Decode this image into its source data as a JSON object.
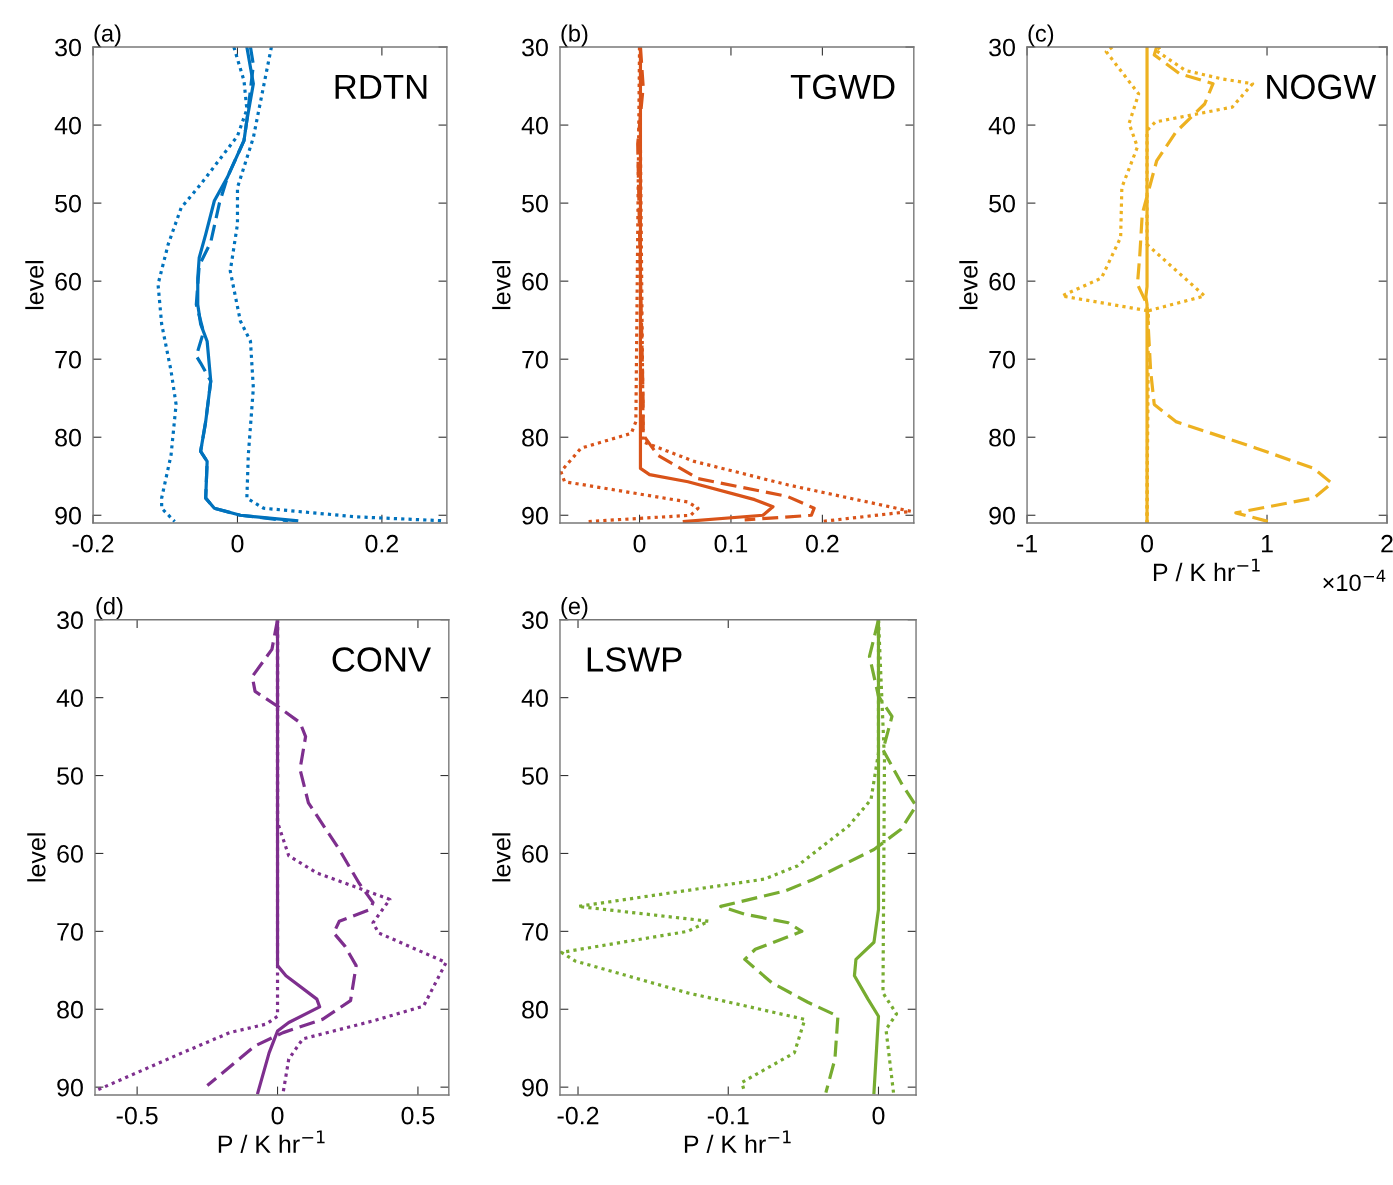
{
  "chart_data": [
    {
      "type": "line",
      "title": "(a)",
      "ylabel": "level",
      "annotations": [
        "RDTN"
      ],
      "xlim": [
        -0.2,
        0.29
      ],
      "xticks": [
        -0.2,
        0,
        0.2
      ],
      "ylim": [
        91,
        30
      ],
      "yticks": [
        30,
        40,
        50,
        60,
        70,
        80,
        90
      ],
      "series": [
        {
          "color": "#0072bd",
          "line_style": "solid",
          "x": [
            0.013,
            0.022,
            0.013,
            0.009,
            -0.014,
            -0.032,
            -0.044,
            -0.053,
            -0.055,
            -0.055,
            -0.051,
            -0.042,
            -0.037,
            -0.044,
            -0.051,
            -0.042,
            -0.044,
            -0.032,
            0.004,
            0.082
          ],
          "values": [
            30,
            34.7,
            39.4,
            42,
            46.7,
            49.7,
            54,
            57,
            59.6,
            63,
            65.5,
            67.7,
            72.8,
            78,
            81.8,
            83.1,
            87.8,
            89.1,
            90,
            90.7
          ]
        },
        {
          "color": "#0072bd",
          "line_style": "dashed",
          "x": [
            0.018,
            0.022,
            0.013,
            0.009,
            -0.014,
            -0.025,
            -0.037,
            -0.053,
            -0.057,
            -0.047,
            -0.057,
            -0.051,
            -0.037,
            -0.044,
            -0.051,
            -0.042,
            -0.044,
            -0.032,
            0.004,
            0.07
          ],
          "values": [
            30,
            32.3,
            39.4,
            42,
            46.7,
            50,
            55,
            58,
            63,
            66.5,
            69.6,
            70.5,
            72.8,
            78,
            81.8,
            83.1,
            87.8,
            89.1,
            90,
            90.7
          ]
        },
        {
          "color": "#0072bd",
          "line_style": "dotted",
          "x": [
            -0.005,
            0.009,
            0.013,
            0.0,
            -0.051,
            -0.078,
            -0.096,
            -0.11,
            -0.105,
            -0.092,
            -0.085,
            -0.092,
            -0.105,
            -0.105,
            -0.087
          ],
          "values": [
            30,
            34.3,
            38,
            41.4,
            47.6,
            50.6,
            55.3,
            60.4,
            65.5,
            71.5,
            75.8,
            82.3,
            87.8,
            89.1,
            90.8
          ]
        },
        {
          "color": "#0072bd",
          "line_style": "dotted",
          "x": [
            0.047,
            0.036,
            0.022,
            0.0,
            0.0,
            -0.01,
            0.004,
            0.018,
            0.022,
            0.015,
            0.013,
            0.036,
            0.164,
            0.283
          ],
          "values": [
            30,
            35.1,
            41.6,
            48,
            52.7,
            58.7,
            65.1,
            67.7,
            73.7,
            82.3,
            87.8,
            89.1,
            90.2,
            90.7
          ]
        }
      ]
    },
    {
      "type": "line",
      "title": "(b)",
      "ylabel": "level",
      "annotations": [
        "TGWD"
      ],
      "xlim": [
        -0.087,
        0.3
      ],
      "xticks": [
        0,
        0.1,
        0.2
      ],
      "ylim": [
        91,
        30
      ],
      "yticks": [
        30,
        40,
        50,
        60,
        70,
        80,
        90
      ],
      "series": [
        {
          "color": "#d95319",
          "line_style": "solid",
          "x": [
            0.001,
            0.001,
            0.011,
            0.053,
            0.126,
            0.146,
            0.135,
            0.049
          ],
          "values": [
            30,
            84,
            84.8,
            85.7,
            88,
            88.9,
            90,
            90.8
          ]
        },
        {
          "color": "#d95319",
          "line_style": "dashed",
          "x": [
            0.001,
            0.004,
            0.0,
            -0.002,
            0.004,
            0.004,
            0.02,
            0.064,
            0.162,
            0.191,
            0.188,
            0.115
          ],
          "values": [
            30,
            35.1,
            40,
            42.4,
            75.8,
            79.7,
            82.3,
            85.3,
            87.6,
            89.1,
            90,
            90.6
          ]
        },
        {
          "color": "#d95319",
          "line_style": "dotted",
          "x": [
            0.0,
            -0.004,
            -0.009,
            -0.064,
            -0.086,
            -0.082,
            0.053,
            0.064,
            0.056,
            -0.056
          ],
          "values": [
            30,
            78,
            79.5,
            81.4,
            84.4,
            85.7,
            88.3,
            89.1,
            90,
            90.8
          ]
        },
        {
          "color": "#d95319",
          "line_style": "dotted",
          "x": [
            0.0,
            0.004,
            0.06,
            0.162,
            0.297,
            0.199
          ],
          "values": [
            30,
            80.6,
            83.1,
            86.1,
            89.5,
            90.8
          ]
        }
      ]
    },
    {
      "type": "line",
      "title": "(c)",
      "ylabel": "level",
      "xlabel": "P / K hr$^{−1}$",
      "annotations": [
        "NOGW",
        "×10$^{−4}$"
      ],
      "xlim": [
        -1,
        2
      ],
      "xticks": [
        -1,
        0,
        1,
        2
      ],
      "ylim": [
        91,
        30
      ],
      "yticks": [
        30,
        40,
        50,
        60,
        70,
        80,
        90
      ],
      "series": [
        {
          "color": "#edb120",
          "line_style": "solid",
          "x": [
            0,
            0,
            -0.01,
            0,
            0
          ],
          "values": [
            30,
            60.7,
            62,
            63,
            91
          ]
        },
        {
          "color": "#edb120",
          "line_style": "dashed",
          "x": [
            0.08,
            0.06,
            0.27,
            0.55,
            0.48,
            0.24,
            0.08,
            0.02,
            -0.04,
            -0.06,
            -0.08,
            0,
            0.03,
            0.06,
            0.24,
            0.91,
            1.39,
            1.54,
            1.39,
            0.74,
            1.01
          ],
          "values": [
            30,
            31,
            33.4,
            34.7,
            37.3,
            40.9,
            44.6,
            48,
            51.4,
            56.6,
            60.4,
            63,
            71.5,
            75.8,
            78,
            81.4,
            84,
            85.9,
            87.8,
            89.7,
            90.8
          ]
        },
        {
          "color": "#edb120",
          "line_style": "dotted",
          "x": [
            -0.29,
            -0.34,
            -0.07,
            -0.15,
            -0.08,
            -0.21,
            -0.22,
            -0.38,
            -0.71,
            0.01,
            0.0
          ],
          "values": [
            30,
            30.6,
            36,
            39.8,
            42.8,
            48,
            54.4,
            59.6,
            61.9,
            63.8,
            91
          ]
        },
        {
          "color": "#edb120",
          "line_style": "dotted",
          "x": [
            0.11,
            0.07,
            0.32,
            0.63,
            0.88,
            0.71,
            0.07,
            0.0,
            0.0,
            0.48,
            0.01,
            0.0
          ],
          "values": [
            30,
            30.4,
            33,
            34.1,
            34.7,
            37.7,
            39.6,
            40.7,
            55.3,
            61.9,
            63.8,
            91
          ]
        }
      ]
    },
    {
      "type": "line",
      "title": "(d)",
      "ylabel": "level",
      "xlabel": "P / K hr$^{−1}$",
      "annotations": [
        "CONV"
      ],
      "xlim": [
        -0.65,
        0.61
      ],
      "xticks": [
        -0.5,
        0,
        0.5
      ],
      "ylim": [
        91,
        30
      ],
      "yticks": [
        30,
        40,
        50,
        60,
        70,
        80,
        90
      ],
      "series": [
        {
          "color": "#7e2f8e",
          "line_style": "solid",
          "x": [
            0,
            0,
            0.03,
            0.14,
            0.15,
            0.04,
            0,
            -0.03,
            -0.07
          ],
          "values": [
            30,
            74.4,
            75.7,
            78.7,
            79.7,
            81.7,
            82.8,
            85.6,
            90.7
          ]
        },
        {
          "color": "#7e2f8e",
          "line_style": "dashed",
          "x": [
            0,
            -0.02,
            -0.09,
            -0.08,
            0,
            0.08,
            0.1,
            0.08,
            0.11,
            0.22,
            0.29,
            0.34,
            0.33,
            0.22,
            0.2,
            0.24,
            0.28,
            0.26,
            0.16,
            0.02,
            -0.08,
            -0.25
          ],
          "values": [
            30,
            33.8,
            37.3,
            39.2,
            41.1,
            43.2,
            45,
            49.2,
            53.5,
            59.5,
            63.8,
            66.3,
            67.2,
            68.7,
            70.2,
            71.9,
            74.4,
            78.9,
            81.3,
            83,
            84.7,
            89.8
          ]
        },
        {
          "color": "#7e2f8e",
          "line_style": "dotted",
          "x": [
            0,
            0,
            0.04,
            0.14,
            0.4,
            0.34,
            0.36,
            0.6,
            0.52,
            0.34,
            0.09,
            0.04,
            0.02
          ],
          "values": [
            30,
            56,
            60.3,
            62.5,
            65.9,
            68.9,
            70.2,
            74,
            79.6,
            81.5,
            83.8,
            86.4,
            90.7
          ]
        },
        {
          "color": "#7e2f8e",
          "line_style": "dotted",
          "x": [
            0,
            0,
            0,
            -0.04,
            -0.17,
            -0.34,
            -0.65
          ],
          "values": [
            30,
            74.9,
            80.9,
            81.9,
            83,
            85.6,
            90.5
          ]
        }
      ]
    },
    {
      "type": "line",
      "title": "(e)",
      "ylabel": "level",
      "xlabel": "P / K hr$^{−1}$",
      "annotations": [
        "LSWP"
      ],
      "xlim": [
        -0.212,
        0.025
      ],
      "xticks": [
        -0.2,
        -0.1,
        0
      ],
      "ylim": [
        91,
        30
      ],
      "yticks": [
        30,
        40,
        50,
        60,
        70,
        80,
        90
      ],
      "series": [
        {
          "color": "#77ac30",
          "line_style": "solid",
          "x": [
            0,
            0,
            -0.003,
            -0.015,
            -0.016,
            -0.007,
            0,
            -0.003
          ],
          "values": [
            30,
            67.2,
            71.4,
            73.6,
            75.7,
            78.7,
            80.9,
            90.7
          ]
        },
        {
          "color": "#77ac30",
          "line_style": "dashed",
          "x": [
            0,
            -0.006,
            0,
            0.009,
            0.003,
            0.015,
            0.025,
            0.015,
            -0.003,
            -0.043,
            -0.062,
            -0.105,
            -0.089,
            -0.06,
            -0.051,
            -0.082,
            -0.089,
            -0.071,
            -0.047,
            -0.027,
            -0.029,
            -0.035
          ],
          "values": [
            30,
            34.7,
            39.8,
            42.4,
            46.7,
            50.9,
            53.9,
            56.9,
            59.5,
            63.3,
            64.8,
            66.8,
            67.8,
            68.9,
            70,
            72.3,
            73.6,
            76.6,
            79.1,
            80.9,
            86.4,
            90.7
          ]
        },
        {
          "color": "#77ac30",
          "line_style": "dotted",
          "x": [
            0,
            0,
            -0.005,
            -0.02,
            -0.054,
            -0.076,
            -0.2,
            -0.113,
            -0.127,
            -0.211,
            -0.202,
            -0.127,
            -0.049,
            -0.056,
            -0.091,
            -0.089
          ],
          "values": [
            30,
            47.1,
            53.1,
            56.5,
            61.6,
            63.3,
            66.8,
            68.7,
            70,
            72.7,
            73.8,
            77.9,
            81.3,
            85.6,
            89.4,
            90.7
          ]
        },
        {
          "color": "#77ac30",
          "line_style": "dotted",
          "x": [
            0,
            0.004,
            0.003,
            0.012,
            0.005,
            0.01
          ],
          "values": [
            30,
            48,
            77.9,
            80.6,
            82.6,
            90.7
          ]
        }
      ]
    }
  ]
}
